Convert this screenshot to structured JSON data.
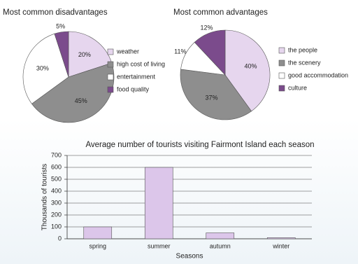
{
  "chart_data": [
    {
      "type": "pie",
      "title": "Most common disadvantages",
      "categories": [
        "weather",
        "high cost of living",
        "entertainment",
        "food quality"
      ],
      "values": [
        20,
        45,
        30,
        5
      ],
      "value_labels": [
        "20%",
        "45%",
        "30%",
        "5%"
      ],
      "colors": [
        "#e6d6ee",
        "#8e8e8e",
        "#ffffff",
        "#7b4b8c"
      ]
    },
    {
      "type": "pie",
      "title": "Most common advantages",
      "categories": [
        "the people",
        "the scenery",
        "good accommodation",
        "culture"
      ],
      "values": [
        40,
        37,
        11,
        12
      ],
      "value_labels": [
        "40%",
        "37%",
        "11%",
        "12%"
      ],
      "colors": [
        "#e6d6ee",
        "#8e8e8e",
        "#ffffff",
        "#7b4b8c"
      ]
    },
    {
      "type": "bar",
      "title": "Average number of tourists visiting Fairmont Island each season",
      "categories": [
        "spring",
        "summer",
        "autumn",
        "winter"
      ],
      "values": [
        100,
        600,
        50,
        10
      ],
      "color": "#dcc6ea",
      "x_label": "Seasons",
      "y_label": "Thousands of tourists",
      "ylim": [
        0,
        700
      ],
      "yticks": [
        0,
        100,
        200,
        300,
        400,
        500,
        600,
        700
      ],
      "grid": true
    }
  ]
}
